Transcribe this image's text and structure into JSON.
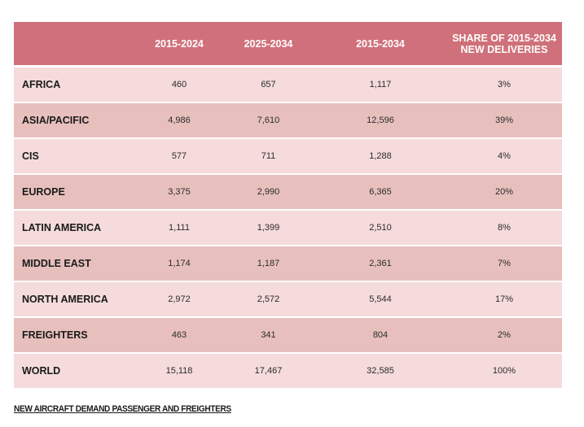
{
  "table": {
    "headers": [
      "",
      "2015-2024",
      "2025-2034",
      "2015-2034",
      "SHARE OF 2015-2034 NEW DELIVERIES"
    ],
    "rows": [
      {
        "region": "AFRICA",
        "p1": "460",
        "p2": "657",
        "total": "1,117",
        "share": "3%"
      },
      {
        "region": "ASIA/PACIFIC",
        "p1": "4,986",
        "p2": "7,610",
        "total": "12,596",
        "share": "39%"
      },
      {
        "region": "CIS",
        "p1": "577",
        "p2": "711",
        "total": "1,288",
        "share": "4%"
      },
      {
        "region": "EUROPE",
        "p1": "3,375",
        "p2": "2,990",
        "total": "6,365",
        "share": "20%"
      },
      {
        "region": "LATIN AMERICA",
        "p1": "1,111",
        "p2": "1,399",
        "total": "2,510",
        "share": "8%"
      },
      {
        "region": "MIDDLE EAST",
        "p1": "1,174",
        "p2": "1,187",
        "total": "2,361",
        "share": "7%"
      },
      {
        "region": "NORTH AMERICA",
        "p1": "2,972",
        "p2": "2,572",
        "total": "5,544",
        "share": "17%"
      },
      {
        "region": "FREIGHTERS",
        "p1": "463",
        "p2": "341",
        "total": "804",
        "share": "2%"
      },
      {
        "region": "WORLD",
        "p1": "15,118",
        "p2": "17,467",
        "total": "32,585",
        "share": "100%"
      }
    ]
  },
  "caption": "NEW AIRCRAFT DEMAND PASSENGER AND FREIGHTERS",
  "colors": {
    "header_bg": "#d0707a",
    "row_light": "#f5dbdb",
    "row_dark": "#e7c0bd"
  }
}
